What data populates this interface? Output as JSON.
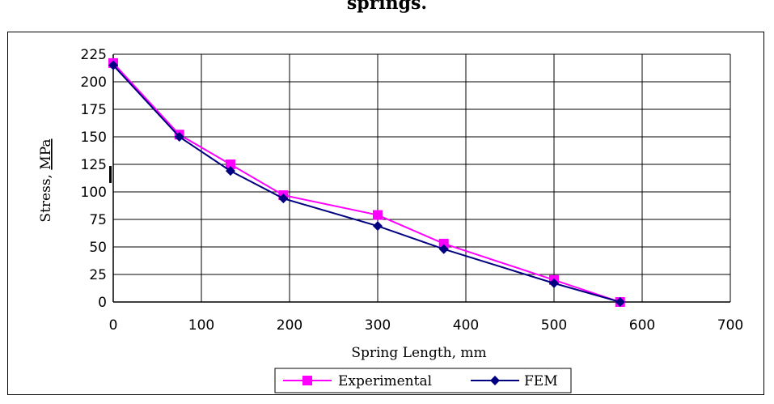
{
  "caption": "springs.",
  "chart_data": {
    "type": "line",
    "xlabel": "Spring Length, mm",
    "ylabel_main": "Stress, ",
    "ylabel_unit": "MPa",
    "xlim": [
      0,
      700
    ],
    "ylim": [
      0,
      225
    ],
    "xticks": [
      0,
      100,
      200,
      300,
      400,
      500,
      600,
      700
    ],
    "yticks": [
      0,
      25,
      50,
      75,
      100,
      125,
      150,
      175,
      200,
      225
    ],
    "grid": true,
    "legend_position": "bottom",
    "series": [
      {
        "name": "Experimental",
        "color": "#ff00ff",
        "marker": "square",
        "x": [
          0,
          75,
          133,
          193,
          300,
          375,
          500,
          575
        ],
        "y": [
          217,
          152,
          125,
          97,
          79,
          53,
          20,
          0
        ]
      },
      {
        "name": "FEM",
        "color": "#000080",
        "marker": "diamond",
        "x": [
          0,
          75,
          133,
          193,
          300,
          375,
          500,
          575
        ],
        "y": [
          215,
          150,
          119,
          94,
          69,
          48,
          17,
          0
        ]
      }
    ]
  }
}
